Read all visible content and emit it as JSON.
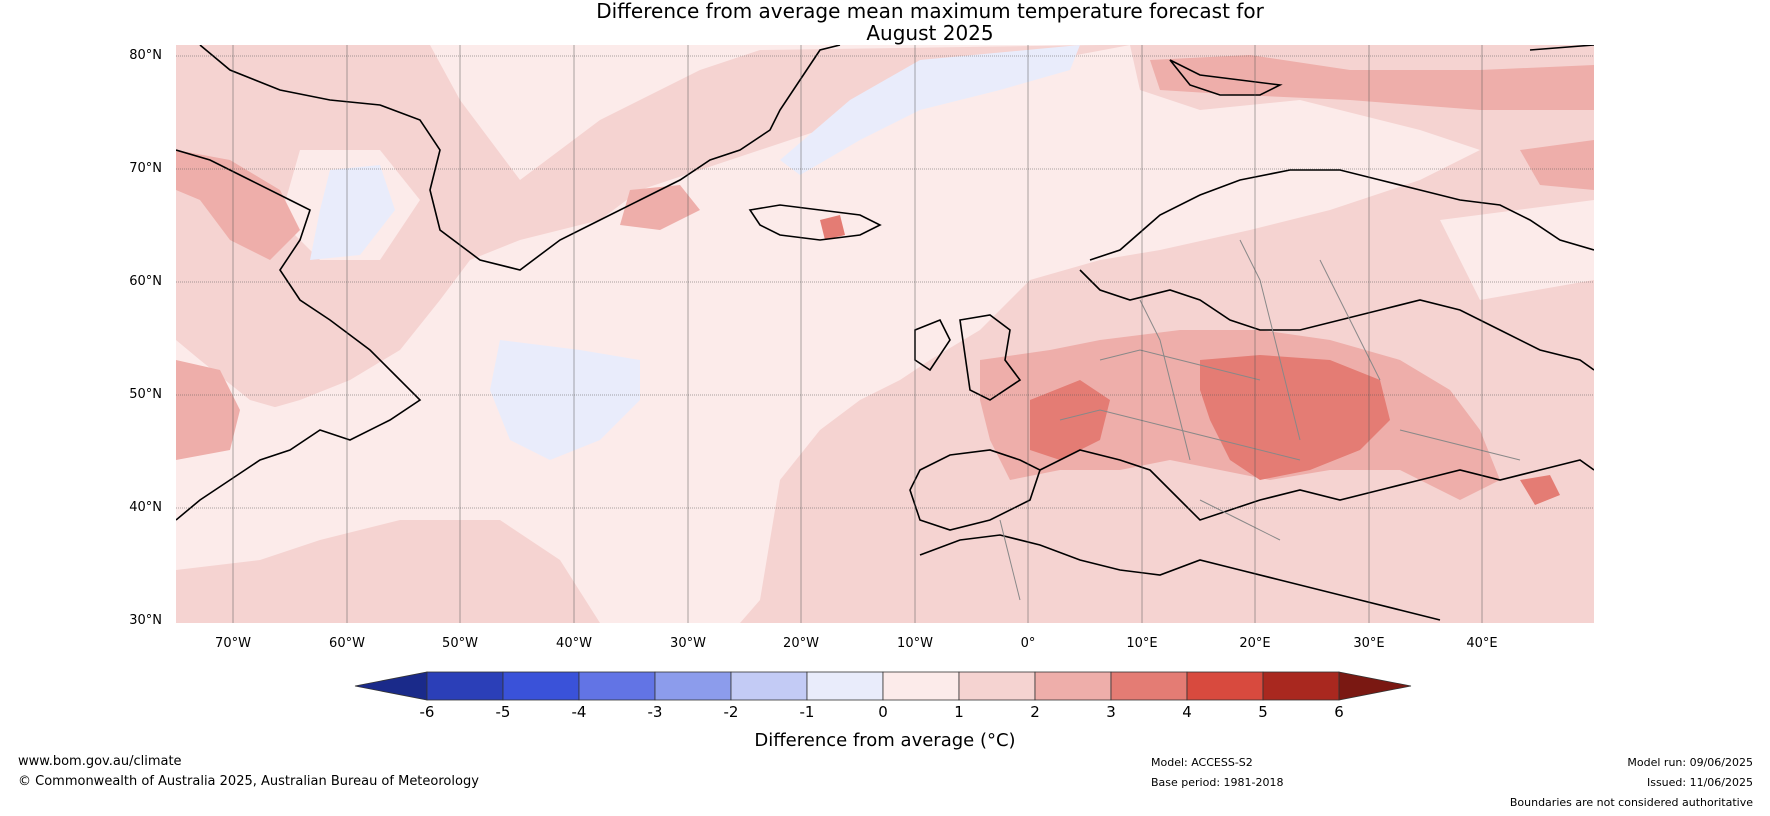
{
  "title": {
    "line1": "Difference from average mean maximum temperature forecast for",
    "line2": "August 2025"
  },
  "axes": {
    "lat_labels": [
      "80°N",
      "70°N",
      "60°N",
      "50°N",
      "40°N",
      "30°N"
    ],
    "lon_labels": [
      "70°W",
      "60°W",
      "50°W",
      "40°W",
      "30°W",
      "20°W",
      "10°W",
      "0°",
      "10°E",
      "20°E",
      "30°E",
      "40°E"
    ]
  },
  "colorbar": {
    "title": "Difference from average (°C)",
    "tick_labels": [
      "-6",
      "-5",
      "-4",
      "-3",
      "-2",
      "-1",
      "0",
      "1",
      "2",
      "3",
      "4",
      "5",
      "6"
    ],
    "colors": [
      "#1a2a8a",
      "#2b3fb8",
      "#3a52d9",
      "#6274e5",
      "#8c9cec",
      "#c3cbf5",
      "#e9ecfb",
      "#fcebea",
      "#f5d3d1",
      "#eeaeaa",
      "#e47c74",
      "#d84a3e",
      "#a9281f",
      "#7a1812"
    ]
  },
  "footer": {
    "website": "www.bom.gov.au/climate",
    "copyright": "© Commonwealth of Australia 2025, Australian Bureau of Meteorology",
    "model": "Model: ACCESS-S2",
    "base_period": "Base period: 1981-2018",
    "model_run": "Model run: 09/06/2025",
    "issued": "Issued: 11/06/2025",
    "disclaimer": "Boundaries are not considered authoritative"
  }
}
